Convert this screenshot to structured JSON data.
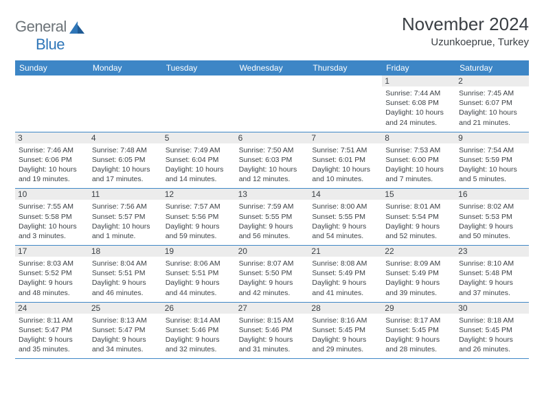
{
  "logo": {
    "general": "General",
    "blue": "Blue"
  },
  "title": "November 2024",
  "location": "Uzunkoeprue, Turkey",
  "colors": {
    "header_bg": "#3d86c6",
    "header_text": "#ffffff",
    "daynum_bg": "#ececec",
    "text": "#3a3f44",
    "rule": "#3d86c6",
    "logo_gray": "#6c7378",
    "logo_blue": "#2f76b8"
  },
  "weekdays": [
    "Sunday",
    "Monday",
    "Tuesday",
    "Wednesday",
    "Thursday",
    "Friday",
    "Saturday"
  ],
  "weeks": [
    [
      null,
      null,
      null,
      null,
      null,
      {
        "n": "1",
        "sunrise": "7:44 AM",
        "sunset": "6:08 PM",
        "daylight": "10 hours and 24 minutes."
      },
      {
        "n": "2",
        "sunrise": "7:45 AM",
        "sunset": "6:07 PM",
        "daylight": "10 hours and 21 minutes."
      }
    ],
    [
      {
        "n": "3",
        "sunrise": "7:46 AM",
        "sunset": "6:06 PM",
        "daylight": "10 hours and 19 minutes."
      },
      {
        "n": "4",
        "sunrise": "7:48 AM",
        "sunset": "6:05 PM",
        "daylight": "10 hours and 17 minutes."
      },
      {
        "n": "5",
        "sunrise": "7:49 AM",
        "sunset": "6:04 PM",
        "daylight": "10 hours and 14 minutes."
      },
      {
        "n": "6",
        "sunrise": "7:50 AM",
        "sunset": "6:03 PM",
        "daylight": "10 hours and 12 minutes."
      },
      {
        "n": "7",
        "sunrise": "7:51 AM",
        "sunset": "6:01 PM",
        "daylight": "10 hours and 10 minutes."
      },
      {
        "n": "8",
        "sunrise": "7:53 AM",
        "sunset": "6:00 PM",
        "daylight": "10 hours and 7 minutes."
      },
      {
        "n": "9",
        "sunrise": "7:54 AM",
        "sunset": "5:59 PM",
        "daylight": "10 hours and 5 minutes."
      }
    ],
    [
      {
        "n": "10",
        "sunrise": "7:55 AM",
        "sunset": "5:58 PM",
        "daylight": "10 hours and 3 minutes."
      },
      {
        "n": "11",
        "sunrise": "7:56 AM",
        "sunset": "5:57 PM",
        "daylight": "10 hours and 1 minute."
      },
      {
        "n": "12",
        "sunrise": "7:57 AM",
        "sunset": "5:56 PM",
        "daylight": "9 hours and 59 minutes."
      },
      {
        "n": "13",
        "sunrise": "7:59 AM",
        "sunset": "5:55 PM",
        "daylight": "9 hours and 56 minutes."
      },
      {
        "n": "14",
        "sunrise": "8:00 AM",
        "sunset": "5:55 PM",
        "daylight": "9 hours and 54 minutes."
      },
      {
        "n": "15",
        "sunrise": "8:01 AM",
        "sunset": "5:54 PM",
        "daylight": "9 hours and 52 minutes."
      },
      {
        "n": "16",
        "sunrise": "8:02 AM",
        "sunset": "5:53 PM",
        "daylight": "9 hours and 50 minutes."
      }
    ],
    [
      {
        "n": "17",
        "sunrise": "8:03 AM",
        "sunset": "5:52 PM",
        "daylight": "9 hours and 48 minutes."
      },
      {
        "n": "18",
        "sunrise": "8:04 AM",
        "sunset": "5:51 PM",
        "daylight": "9 hours and 46 minutes."
      },
      {
        "n": "19",
        "sunrise": "8:06 AM",
        "sunset": "5:51 PM",
        "daylight": "9 hours and 44 minutes."
      },
      {
        "n": "20",
        "sunrise": "8:07 AM",
        "sunset": "5:50 PM",
        "daylight": "9 hours and 42 minutes."
      },
      {
        "n": "21",
        "sunrise": "8:08 AM",
        "sunset": "5:49 PM",
        "daylight": "9 hours and 41 minutes."
      },
      {
        "n": "22",
        "sunrise": "8:09 AM",
        "sunset": "5:49 PM",
        "daylight": "9 hours and 39 minutes."
      },
      {
        "n": "23",
        "sunrise": "8:10 AM",
        "sunset": "5:48 PM",
        "daylight": "9 hours and 37 minutes."
      }
    ],
    [
      {
        "n": "24",
        "sunrise": "8:11 AM",
        "sunset": "5:47 PM",
        "daylight": "9 hours and 35 minutes."
      },
      {
        "n": "25",
        "sunrise": "8:13 AM",
        "sunset": "5:47 PM",
        "daylight": "9 hours and 34 minutes."
      },
      {
        "n": "26",
        "sunrise": "8:14 AM",
        "sunset": "5:46 PM",
        "daylight": "9 hours and 32 minutes."
      },
      {
        "n": "27",
        "sunrise": "8:15 AM",
        "sunset": "5:46 PM",
        "daylight": "9 hours and 31 minutes."
      },
      {
        "n": "28",
        "sunrise": "8:16 AM",
        "sunset": "5:45 PM",
        "daylight": "9 hours and 29 minutes."
      },
      {
        "n": "29",
        "sunrise": "8:17 AM",
        "sunset": "5:45 PM",
        "daylight": "9 hours and 28 minutes."
      },
      {
        "n": "30",
        "sunrise": "8:18 AM",
        "sunset": "5:45 PM",
        "daylight": "9 hours and 26 minutes."
      }
    ]
  ],
  "labels": {
    "sunrise": "Sunrise: ",
    "sunset": "Sunset: ",
    "daylight": "Daylight: "
  }
}
